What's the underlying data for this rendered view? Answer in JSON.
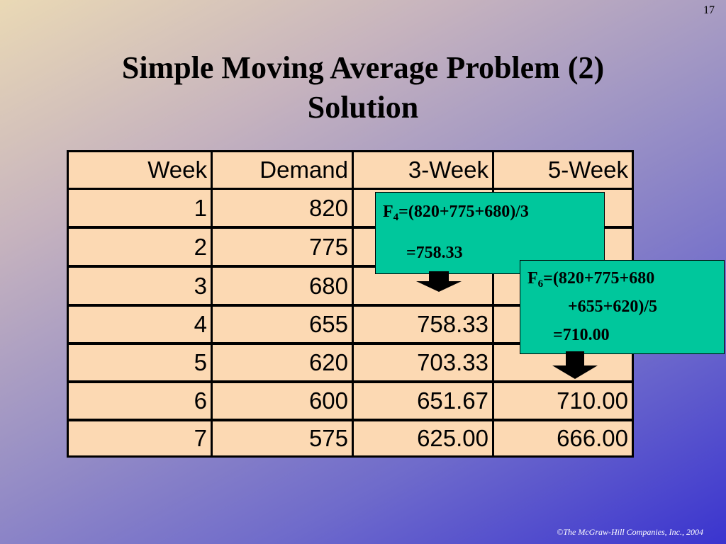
{
  "page_number": "17",
  "title": {
    "line1": "Simple Moving Average Problem (2)",
    "line2": "Solution"
  },
  "table": {
    "headers": [
      "Week",
      "Demand",
      "3-Week",
      "5-Week"
    ],
    "rows": [
      [
        "1",
        "820",
        "",
        ""
      ],
      [
        "2",
        "775",
        "",
        ""
      ],
      [
        "3",
        "680",
        "",
        ""
      ],
      [
        "4",
        "655",
        "758.33",
        ""
      ],
      [
        "5",
        "620",
        "703.33",
        ""
      ],
      [
        "6",
        "600",
        "651.67",
        "710.00"
      ],
      [
        "7",
        "575",
        "625.00",
        "666.00"
      ]
    ]
  },
  "callout_3week": {
    "var": "F",
    "sub": "4",
    "formula": "=(820+775+680)/3",
    "result": "=758.33"
  },
  "callout_5week": {
    "var": "F",
    "sub": "6",
    "formula_line1": "=(820+775+680",
    "formula_line2": "+655+620)/5",
    "result": "=710.00"
  },
  "footer": "©The McGraw-Hill Companies, Inc., 2004",
  "colors": {
    "cell_fill": "#fcd9b3",
    "callout_fill": "#00c79c"
  }
}
